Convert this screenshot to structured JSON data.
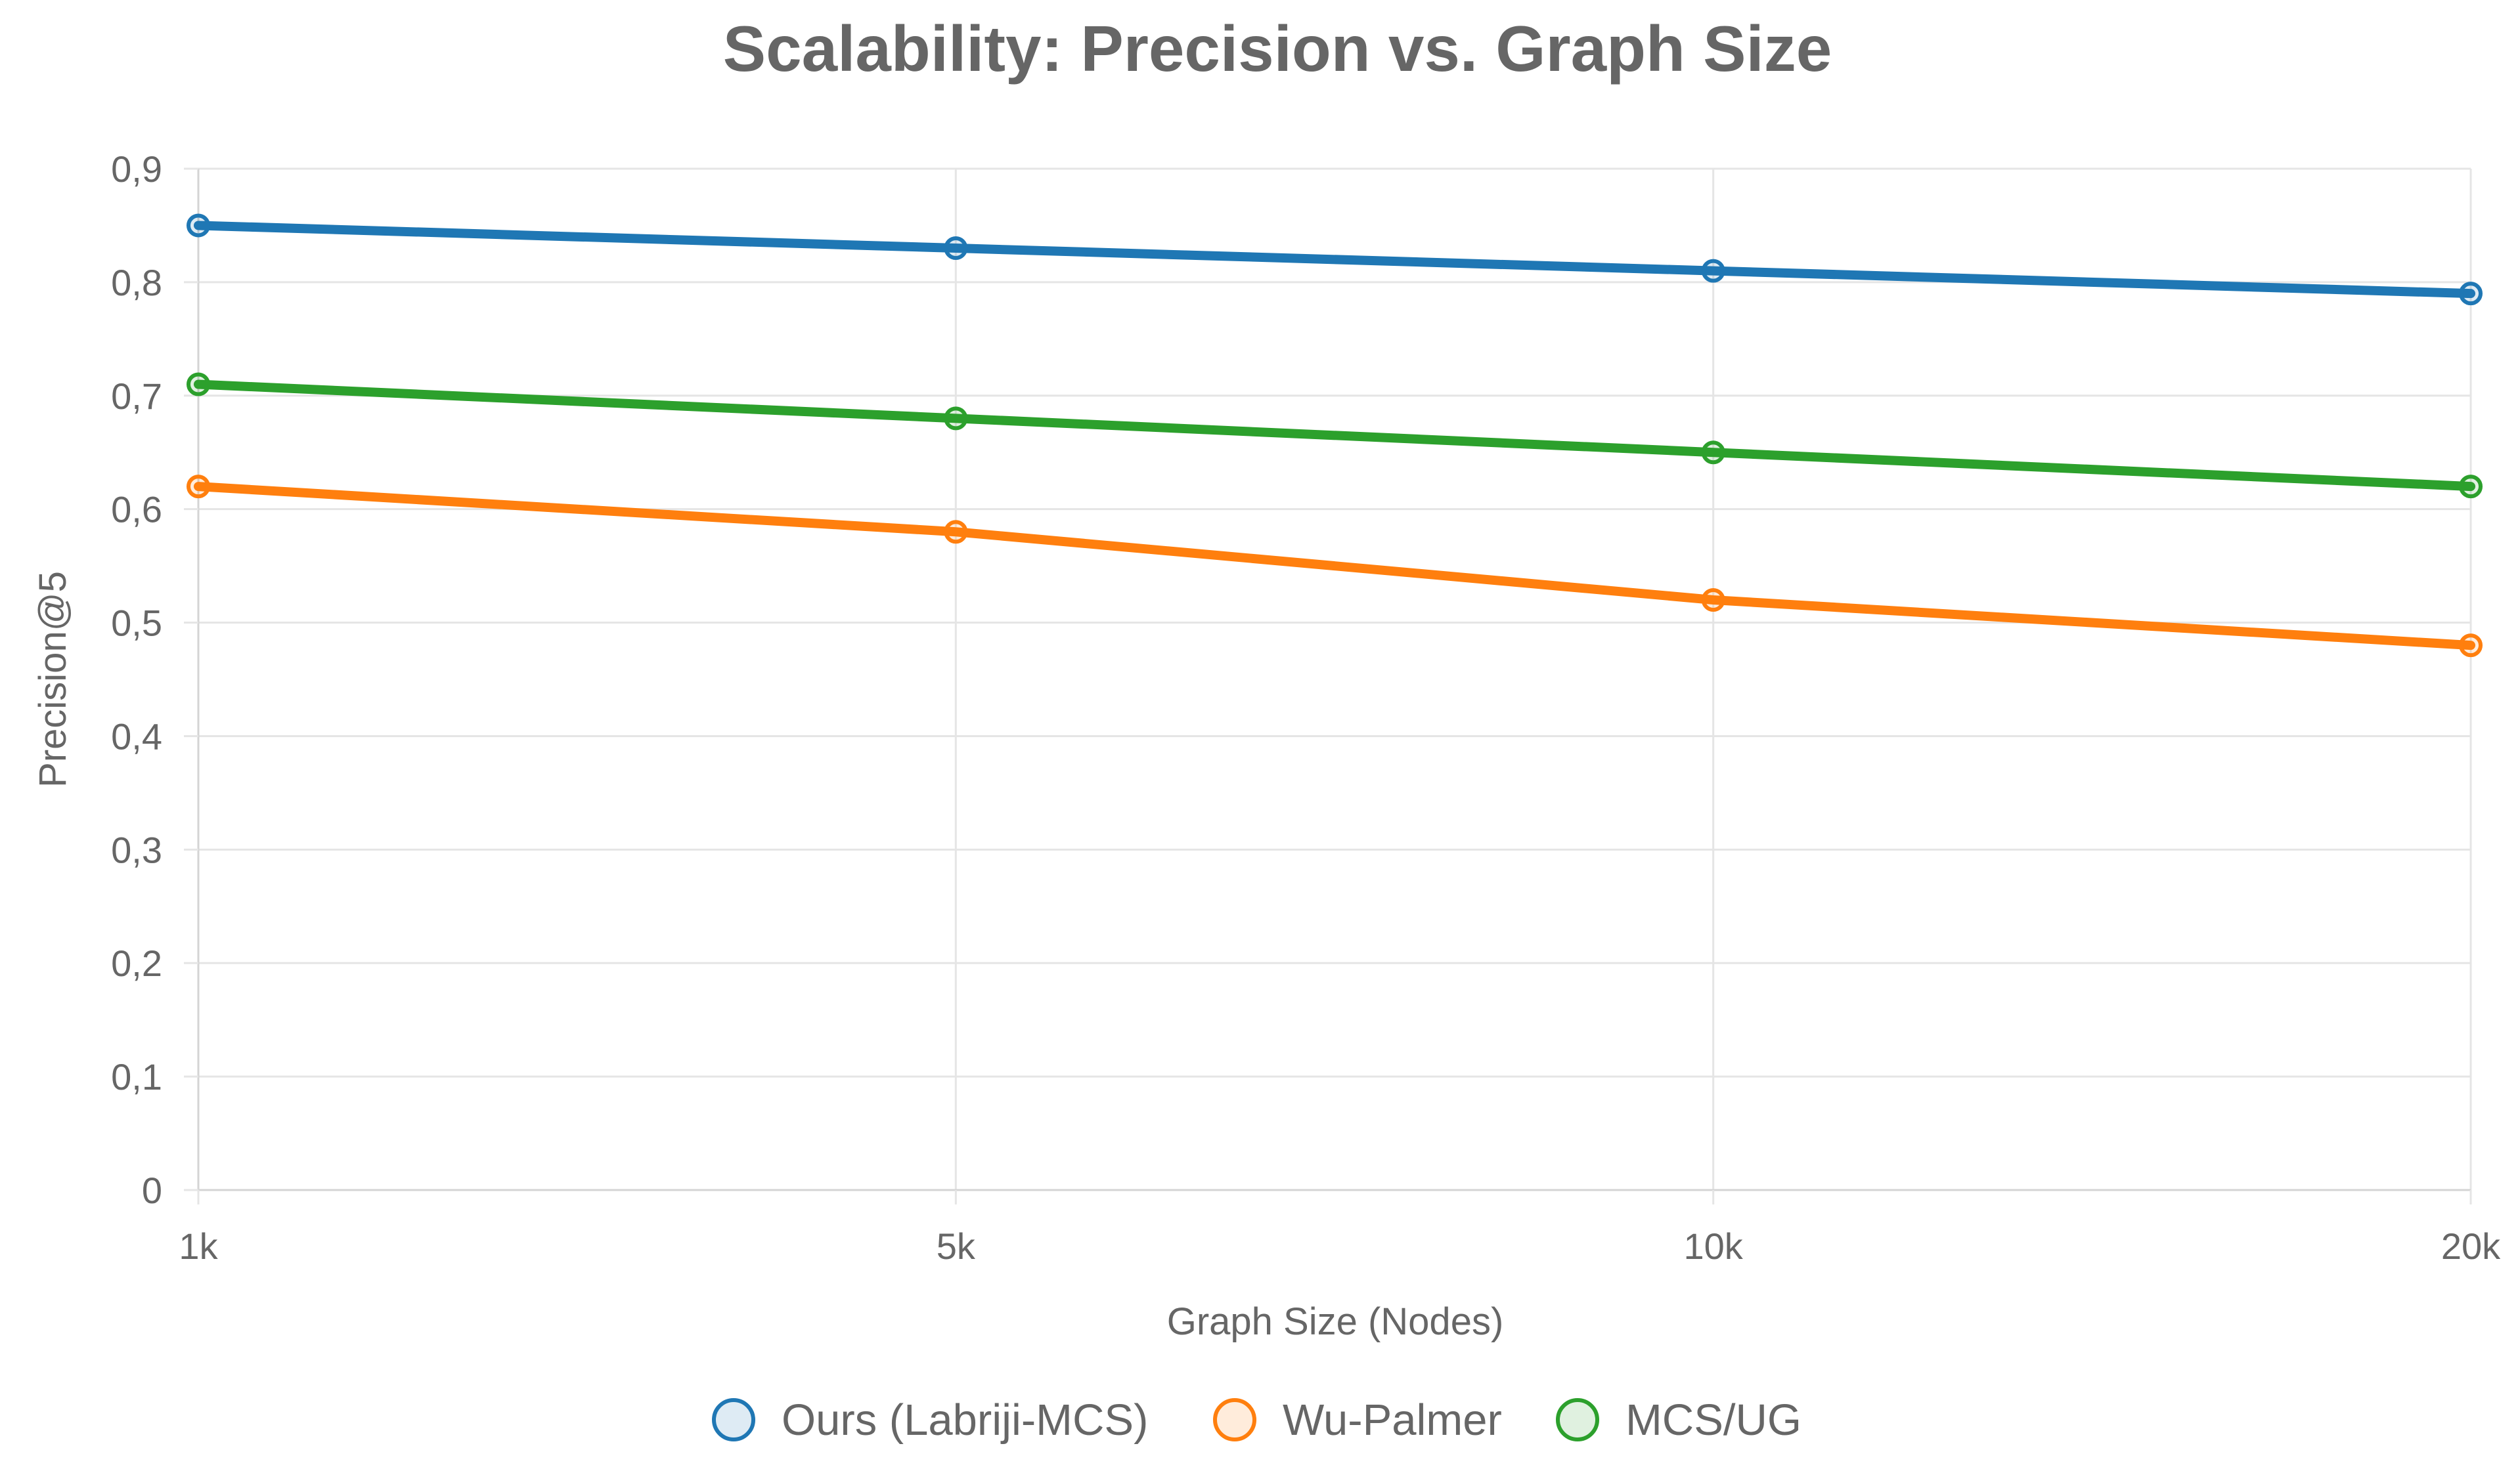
{
  "chart_data": {
    "type": "line",
    "title": "Scalability: Precision vs. Graph Size",
    "xlabel": "Graph Size (Nodes)",
    "ylabel": "Precision@5",
    "categories": [
      "1k",
      "5k",
      "10k",
      "20k"
    ],
    "ylim": [
      0,
      0.9
    ],
    "yticks": [
      "0",
      "0,1",
      "0,2",
      "0,3",
      "0,4",
      "0,5",
      "0,6",
      "0,7",
      "0,8",
      "0,9"
    ],
    "grid": true,
    "legend_position": "bottom",
    "series": [
      {
        "name": "Ours (Labriji-MCS)",
        "color": "#1f77b4",
        "fill": "rgba(31,119,180,0.15)",
        "values": [
          0.85,
          0.83,
          0.81,
          0.79
        ]
      },
      {
        "name": "Wu-Palmer",
        "color": "#ff7f0e",
        "fill": "rgba(255,127,14,0.15)",
        "values": [
          0.62,
          0.58,
          0.52,
          0.48
        ]
      },
      {
        "name": "MCS/UG",
        "color": "#2ca02c",
        "fill": "rgba(44,160,44,0.15)",
        "values": [
          0.71,
          0.68,
          0.65,
          0.62
        ]
      }
    ]
  }
}
